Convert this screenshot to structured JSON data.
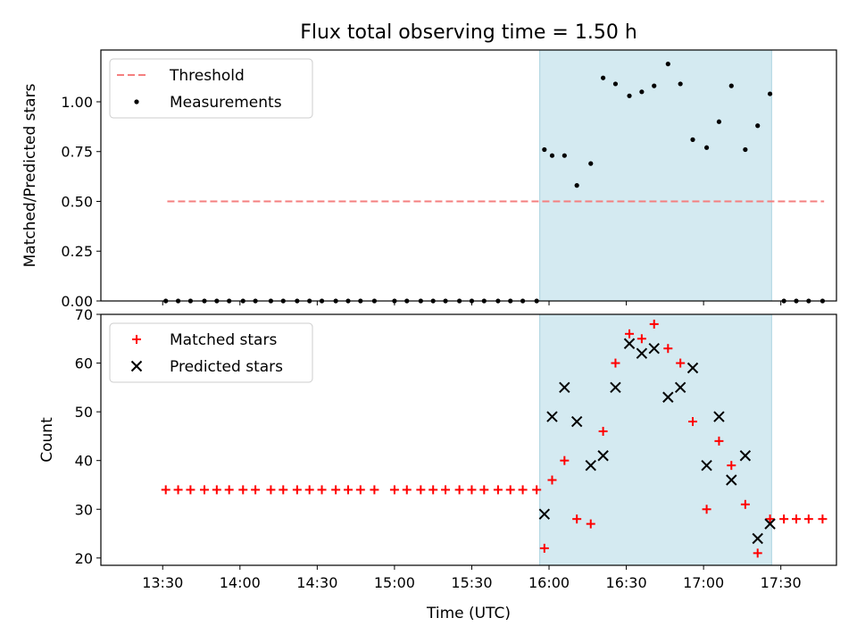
{
  "figure": {
    "title": "Flux total observing time = 1.50 h",
    "xlabel": "Time (UTC)",
    "x_tick_labels": [
      "13:30",
      "14:00",
      "14:30",
      "15:00",
      "15:30",
      "16:00",
      "16:30",
      "17:00",
      "17:30"
    ],
    "x_ticks_hours": [
      13.5,
      14.0,
      14.5,
      15.0,
      15.5,
      16.0,
      16.5,
      17.0,
      17.5
    ]
  },
  "chart_data": [
    {
      "type": "scatter",
      "ylabel": "Matched/Predicted stars",
      "xlim_hours": [
        13.1,
        17.86
      ],
      "ylim": [
        0,
        1.26
      ],
      "y_ticks": [
        0.0,
        0.25,
        0.5,
        0.75,
        1.0
      ],
      "y_tick_labels": [
        "0.00",
        "0.25",
        "0.50",
        "0.75",
        "1.00"
      ],
      "shaded_interval_hours": [
        15.94,
        17.44
      ],
      "shade_color": "#d4eaf1",
      "legend": {
        "location": "upper-left",
        "entries": [
          "Threshold",
          "Measurements"
        ]
      },
      "threshold": {
        "name": "Threshold",
        "value": 0.5,
        "x_range_hours": [
          13.53,
          17.78
        ],
        "color": "#f47f7f",
        "style": "dashed"
      },
      "series": [
        {
          "name": "Measurements",
          "color": "#000000",
          "marker": "dot",
          "x_hours": [
            13.52,
            13.6,
            13.68,
            13.77,
            13.85,
            13.93,
            14.02,
            14.1,
            14.2,
            14.28,
            14.37,
            14.45,
            14.53,
            14.62,
            14.7,
            14.78,
            14.87,
            15.0,
            15.08,
            15.17,
            15.25,
            15.33,
            15.42,
            15.5,
            15.58,
            15.67,
            15.75,
            15.83,
            15.92,
            15.97,
            16.02,
            16.1,
            16.18,
            16.27,
            16.35,
            16.43,
            16.52,
            16.6,
            16.68,
            16.77,
            16.85,
            16.93,
            17.02,
            17.1,
            17.18,
            17.27,
            17.35,
            17.43,
            17.52,
            17.6,
            17.68,
            17.77
          ],
          "y": [
            0,
            0,
            0,
            0,
            0,
            0,
            0,
            0,
            0,
            0,
            0,
            0,
            0,
            0,
            0,
            0,
            0,
            0,
            0,
            0,
            0,
            0,
            0,
            0,
            0,
            0,
            0,
            0,
            0,
            0.76,
            0.73,
            0.73,
            0.58,
            0.69,
            1.12,
            1.09,
            1.03,
            1.05,
            1.08,
            1.19,
            1.09,
            0.81,
            0.77,
            0.9,
            1.08,
            0.76,
            0.88,
            1.04,
            0,
            0,
            0,
            0
          ]
        }
      ]
    },
    {
      "type": "scatter",
      "ylabel": "Count",
      "xlim_hours": [
        13.1,
        17.86
      ],
      "ylim": [
        18.5,
        70
      ],
      "y_ticks": [
        20,
        30,
        40,
        50,
        60,
        70
      ],
      "y_tick_labels": [
        "20",
        "30",
        "40",
        "50",
        "60",
        "70"
      ],
      "shaded_interval_hours": [
        15.94,
        17.44
      ],
      "shade_color": "#d4eaf1",
      "legend": {
        "location": "upper-left",
        "entries": [
          "Matched stars",
          "Predicted stars"
        ]
      },
      "series": [
        {
          "name": "Matched stars",
          "color": "#ff0000",
          "marker": "plus",
          "x_hours": [
            13.52,
            13.6,
            13.68,
            13.77,
            13.85,
            13.93,
            14.02,
            14.1,
            14.2,
            14.28,
            14.37,
            14.45,
            14.53,
            14.62,
            14.7,
            14.78,
            14.87,
            15.0,
            15.08,
            15.17,
            15.25,
            15.33,
            15.42,
            15.5,
            15.58,
            15.67,
            15.75,
            15.83,
            15.92,
            15.97,
            16.02,
            16.1,
            16.18,
            16.27,
            16.35,
            16.43,
            16.52,
            16.6,
            16.68,
            16.77,
            16.85,
            16.93,
            17.02,
            17.1,
            17.18,
            17.27,
            17.35,
            17.43,
            17.52,
            17.6,
            17.68,
            17.77
          ],
          "y": [
            34,
            34,
            34,
            34,
            34,
            34,
            34,
            34,
            34,
            34,
            34,
            34,
            34,
            34,
            34,
            34,
            34,
            34,
            34,
            34,
            34,
            34,
            34,
            34,
            34,
            34,
            34,
            34,
            34,
            22,
            36,
            40,
            28,
            27,
            46,
            60,
            66,
            65,
            68,
            63,
            60,
            48,
            30,
            44,
            39,
            31,
            21,
            28,
            28,
            28,
            28,
            28
          ]
        },
        {
          "name": "Predicted stars",
          "color": "#000000",
          "marker": "x",
          "x_hours": [
            15.97,
            16.02,
            16.1,
            16.18,
            16.27,
            16.35,
            16.43,
            16.52,
            16.6,
            16.68,
            16.77,
            16.85,
            16.93,
            17.02,
            17.1,
            17.18,
            17.27,
            17.35,
            17.43
          ],
          "y": [
            29,
            49,
            55,
            48,
            39,
            41,
            55,
            64,
            62,
            63,
            53,
            55,
            59,
            39,
            49,
            36,
            41,
            24,
            27
          ]
        }
      ]
    }
  ]
}
